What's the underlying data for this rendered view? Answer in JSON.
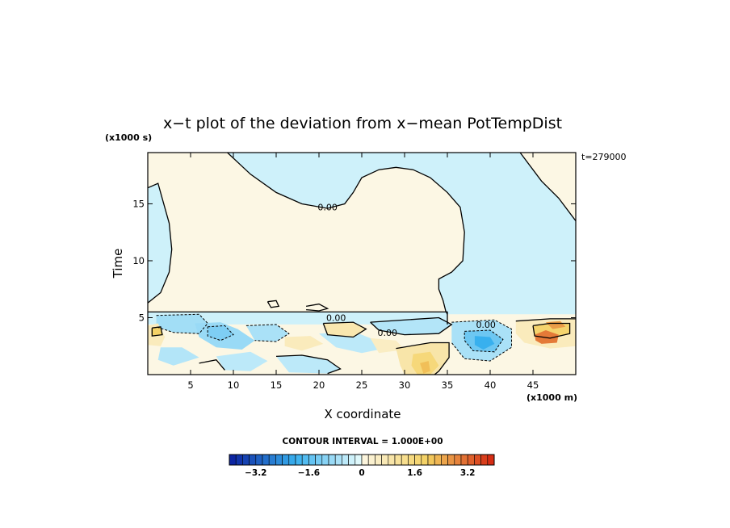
{
  "chart_data": {
    "type": "heatmap",
    "title": "x−t plot of the deviation from x−mean PotTempDist",
    "xlabel": "X coordinate",
    "ylabel": "Time",
    "x_unit": "(x1000 m)",
    "y_unit": "(x1000 s)",
    "time_stamp": "t=279000",
    "xlim": [
      0,
      50
    ],
    "ylim": [
      0,
      19.5
    ],
    "x_ticks": [
      5,
      10,
      15,
      20,
      25,
      30,
      35,
      40,
      45
    ],
    "y_ticks": [
      5,
      10,
      15
    ],
    "contour_interval_text": "CONTOUR INTERVAL = 1.000E+00",
    "contour_labels": [
      {
        "text": "0.00",
        "x": 21.0,
        "y": 14.7
      },
      {
        "text": "0.00",
        "x": 22.0,
        "y": 5.0
      },
      {
        "text": "0.00",
        "x": 39.5,
        "y": 4.4
      },
      {
        "text": "0.00",
        "x": 28.0,
        "y": 3.7
      }
    ],
    "colorbar": {
      "min": -4.0,
      "max": 4.0,
      "n_bins": 40,
      "tick_values": [
        -3.2,
        -1.6,
        0,
        1.6,
        3.2
      ],
      "tick_labels": [
        "−3.2",
        "−1.6",
        "0",
        "1.6",
        "3.2"
      ]
    },
    "colors": {
      "neg_deep": "#0a1e9e",
      "neg_mid": "#38b0ee",
      "neg_light": "#e8fcfc",
      "pos_light": "#fcf7e4",
      "pos_mid": "#f4d060",
      "pos_deep": "#d42410"
    },
    "regions": [
      {
        "value": -0.3,
        "polygon": [
          [
            0,
            6.3
          ],
          [
            1.5,
            7.2
          ],
          [
            2.5,
            9
          ],
          [
            2.8,
            11
          ],
          [
            2.5,
            13.3
          ],
          [
            1.6,
            15.7
          ],
          [
            1.2,
            16.8
          ],
          [
            0,
            16.4
          ],
          [
            0,
            19.5
          ],
          [
            9.3,
            19.5
          ],
          [
            12,
            17.6
          ],
          [
            15,
            16
          ],
          [
            18,
            15
          ],
          [
            21,
            14.6
          ],
          [
            23,
            15
          ],
          [
            24,
            16
          ],
          [
            25,
            17.3
          ],
          [
            27,
            18
          ],
          [
            29,
            18.2
          ],
          [
            31,
            18
          ],
          [
            33,
            17.3
          ],
          [
            35,
            16
          ],
          [
            36.5,
            14.7
          ],
          [
            37,
            12.5
          ],
          [
            36.8,
            10
          ],
          [
            35.5,
            9
          ],
          [
            34,
            8.4
          ],
          [
            34,
            7.5
          ],
          [
            34.5,
            6.5
          ],
          [
            34.8,
            5.6
          ],
          [
            35,
            5.3
          ],
          [
            50,
            5.3
          ],
          [
            50,
            13.5
          ],
          [
            48,
            15.5
          ],
          [
            46,
            17
          ],
          [
            43.5,
            19.5
          ],
          [
            50,
            19.5
          ],
          [
            50,
            19.5
          ],
          [
            0,
            19.5
          ],
          [
            0,
            6.3
          ]
        ]
      },
      {
        "value": -0.3,
        "polygon": [
          [
            0,
            5.5
          ],
          [
            35,
            5.5
          ],
          [
            35,
            4.4
          ],
          [
            0,
            4.4
          ]
        ]
      },
      {
        "value": -0.8,
        "polygon": [
          [
            1,
            5.2
          ],
          [
            6,
            5.3
          ],
          [
            7,
            4.5
          ],
          [
            6,
            3.6
          ],
          [
            3,
            3.7
          ],
          [
            1,
            4.2
          ]
        ]
      },
      {
        "value": -0.9,
        "polygon": [
          [
            5.5,
            4.5
          ],
          [
            8.5,
            4.6
          ],
          [
            10.5,
            4.0
          ],
          [
            12.5,
            3.0
          ],
          [
            11,
            2.2
          ],
          [
            8,
            2.4
          ],
          [
            6,
            3.3
          ]
        ]
      },
      {
        "value": -1.2,
        "polygon": [
          [
            7,
            4.2
          ],
          [
            9,
            4.3
          ],
          [
            10,
            3.5
          ],
          [
            8.5,
            3.0
          ],
          [
            7,
            3.4
          ]
        ]
      },
      {
        "value": -0.7,
        "polygon": [
          [
            11.5,
            4.3
          ],
          [
            15,
            4.4
          ],
          [
            16.5,
            3.6
          ],
          [
            15,
            2.9
          ],
          [
            12.5,
            3.0
          ]
        ]
      },
      {
        "value": -0.6,
        "polygon": [
          [
            1.5,
            2.4
          ],
          [
            4,
            2.4
          ],
          [
            6,
            1.5
          ],
          [
            3,
            0.8
          ],
          [
            1.2,
            1.3
          ]
        ]
      },
      {
        "value": -0.5,
        "polygon": [
          [
            8,
            1.6
          ],
          [
            12,
            2.0
          ],
          [
            14,
            1.2
          ],
          [
            12,
            0.3
          ],
          [
            9,
            0.4
          ]
        ]
      },
      {
        "value": -0.5,
        "polygon": [
          [
            15,
            1.6
          ],
          [
            18,
            1.7
          ],
          [
            21,
            1.3
          ],
          [
            22.5,
            0.5
          ],
          [
            21,
            0.1
          ],
          [
            16.5,
            0.2
          ]
        ]
      },
      {
        "value": -0.5,
        "polygon": [
          [
            20,
            3.6
          ],
          [
            24,
            3.8
          ],
          [
            26,
            3.2
          ],
          [
            27,
            2.2
          ],
          [
            25,
            1.9
          ],
          [
            22,
            2.4
          ]
        ]
      },
      {
        "value": -0.6,
        "polygon": [
          [
            26,
            4.6
          ],
          [
            34,
            5.0
          ],
          [
            35.5,
            4.4
          ],
          [
            34,
            3.6
          ],
          [
            30,
            3.5
          ],
          [
            27,
            3.9
          ]
        ]
      },
      {
        "value": -0.7,
        "polygon": [
          [
            35.5,
            4.6
          ],
          [
            40.5,
            4.8
          ],
          [
            42.5,
            4.0
          ],
          [
            42.5,
            2.4
          ],
          [
            40,
            1.2
          ],
          [
            37,
            1.4
          ],
          [
            35.5,
            2.8
          ]
        ]
      },
      {
        "value": -1.4,
        "polygon": [
          [
            37,
            3.8
          ],
          [
            40,
            3.9
          ],
          [
            41.5,
            3.1
          ],
          [
            40.5,
            2.0
          ],
          [
            38,
            2.1
          ],
          [
            37,
            3.0
          ]
        ]
      },
      {
        "value": -2.0,
        "polygon": [
          [
            38.2,
            3.4
          ],
          [
            40,
            3.3
          ],
          [
            40.5,
            2.7
          ],
          [
            39.2,
            2.2
          ],
          [
            38.2,
            2.6
          ]
        ]
      },
      {
        "value": 0.6,
        "polygon": [
          [
            0,
            4.3
          ],
          [
            1.2,
            4.5
          ],
          [
            2,
            3.3
          ],
          [
            1.5,
            2.5
          ],
          [
            0,
            2.6
          ]
        ]
      },
      {
        "value": 1.9,
        "polygon": [
          [
            0.5,
            4.1
          ],
          [
            1.5,
            4.2
          ],
          [
            1.7,
            3.5
          ],
          [
            0.5,
            3.4
          ]
        ]
      },
      {
        "value": 0.8,
        "polygon": [
          [
            20.5,
            4.5
          ],
          [
            24,
            4.6
          ],
          [
            25.5,
            4.0
          ],
          [
            24,
            3.3
          ],
          [
            21,
            3.5
          ]
        ]
      },
      {
        "value": 0.5,
        "polygon": [
          [
            26,
            3.2
          ],
          [
            29,
            3.0
          ],
          [
            30,
            2.2
          ],
          [
            27,
            1.9
          ]
        ]
      },
      {
        "value": 0.6,
        "polygon": [
          [
            16,
            3.3
          ],
          [
            19,
            3.4
          ],
          [
            20.5,
            2.7
          ],
          [
            18,
            2.1
          ],
          [
            16,
            2.5
          ]
        ]
      },
      {
        "value": 0.9,
        "polygon": [
          [
            29,
            2.3
          ],
          [
            33,
            2.8
          ],
          [
            35.2,
            2.8
          ],
          [
            35.2,
            1.5
          ],
          [
            34,
            0.3
          ],
          [
            33.5,
            0
          ],
          [
            30,
            0
          ],
          [
            29.5,
            0.8
          ]
        ]
      },
      {
        "value": 1.6,
        "polygon": [
          [
            31,
            1.8
          ],
          [
            33,
            2.0
          ],
          [
            34,
            0.8
          ],
          [
            33,
            0
          ],
          [
            31.5,
            0
          ],
          [
            30.8,
            0.8
          ]
        ]
      },
      {
        "value": 2.2,
        "polygon": [
          [
            31.8,
            1.0
          ],
          [
            32.8,
            1.2
          ],
          [
            33,
            0.3
          ],
          [
            32.2,
            0.1
          ]
        ]
      },
      {
        "value": 0.6,
        "polygon": [
          [
            43,
            4.7
          ],
          [
            47,
            4.9
          ],
          [
            50,
            4.9
          ],
          [
            50,
            2.5
          ],
          [
            47,
            2.3
          ],
          [
            44,
            2.8
          ],
          [
            43,
            3.6
          ]
        ]
      },
      {
        "value": 1.8,
        "polygon": [
          [
            45,
            4.3
          ],
          [
            47,
            4.5
          ],
          [
            49.3,
            4.5
          ],
          [
            49.3,
            3.6
          ],
          [
            47,
            3.2
          ],
          [
            45.2,
            3.4
          ]
        ]
      },
      {
        "value": 3.0,
        "polygon": [
          [
            45.2,
            3.5
          ],
          [
            46.5,
            3.9
          ],
          [
            48,
            3.5
          ],
          [
            47.8,
            2.8
          ],
          [
            46,
            2.7
          ],
          [
            45.3,
            3.0
          ]
        ]
      },
      {
        "value": 2.6,
        "polygon": [
          [
            46.5,
            4.6
          ],
          [
            48.2,
            4.7
          ],
          [
            48.8,
            4.2
          ],
          [
            47.3,
            4.0
          ]
        ]
      }
    ],
    "contour_lines": [
      [
        [
          9.3,
          19.5
        ],
        [
          12,
          17.6
        ],
        [
          15,
          16
        ],
        [
          18,
          15
        ],
        [
          21,
          14.6
        ],
        [
          23,
          15
        ],
        [
          24,
          16
        ],
        [
          25,
          17.3
        ],
        [
          27,
          18
        ],
        [
          29,
          18.2
        ],
        [
          31,
          18
        ],
        [
          33,
          17.3
        ],
        [
          35,
          16
        ],
        [
          36.5,
          14.7
        ],
        [
          37,
          12.5
        ],
        [
          36.8,
          10
        ],
        [
          35.5,
          9
        ],
        [
          34,
          8.4
        ],
        [
          34,
          7.5
        ],
        [
          34.5,
          6.5
        ],
        [
          34.8,
          5.6
        ],
        [
          35,
          5.3
        ]
      ],
      [
        [
          43.5,
          19.5
        ],
        [
          46,
          17
        ],
        [
          48,
          15.5
        ],
        [
          50,
          13.5
        ]
      ],
      [
        [
          0,
          6.3
        ],
        [
          1.5,
          7.2
        ],
        [
          2.5,
          9
        ],
        [
          2.8,
          11
        ],
        [
          2.5,
          13.3
        ],
        [
          1.6,
          15.7
        ],
        [
          1.2,
          16.8
        ],
        [
          0,
          16.4
        ]
      ],
      [
        [
          0,
          5.5
        ],
        [
          35,
          5.5
        ],
        [
          35,
          4.4
        ]
      ],
      [
        [
          20.5,
          4.5
        ],
        [
          24,
          4.6
        ],
        [
          25.5,
          4.0
        ],
        [
          24,
          3.3
        ],
        [
          21,
          3.5
        ],
        [
          20.5,
          4.5
        ]
      ],
      [
        [
          29,
          2.3
        ],
        [
          33,
          2.8
        ],
        [
          35.2,
          2.8
        ],
        [
          35.2,
          1.5
        ],
        [
          34,
          0.3
        ],
        [
          33.5,
          0
        ]
      ],
      [
        [
          26,
          4.6
        ],
        [
          34,
          5.0
        ],
        [
          35.5,
          4.4
        ],
        [
          34,
          3.6
        ],
        [
          30,
          3.5
        ],
        [
          27,
          3.9
        ],
        [
          26,
          4.6
        ]
      ],
      [
        [
          43,
          4.7
        ],
        [
          47,
          4.9
        ],
        [
          50,
          4.9
        ]
      ],
      [
        [
          45,
          4.3
        ],
        [
          47,
          4.5
        ],
        [
          49.3,
          4.5
        ],
        [
          49.3,
          3.6
        ],
        [
          47,
          3.2
        ],
        [
          45.2,
          3.4
        ],
        [
          45,
          4.3
        ]
      ],
      [
        [
          0.5,
          4.1
        ],
        [
          1.5,
          4.2
        ],
        [
          1.7,
          3.5
        ],
        [
          0.5,
          3.4
        ],
        [
          0.5,
          4.1
        ]
      ],
      [
        [
          15,
          1.6
        ],
        [
          18,
          1.7
        ],
        [
          21,
          1.3
        ],
        [
          22.5,
          0.5
        ],
        [
          21,
          0.1
        ]
      ],
      [
        [
          6,
          1.0
        ],
        [
          8,
          1.3
        ],
        [
          9,
          0.4
        ]
      ],
      [
        [
          14,
          6.4
        ],
        [
          15,
          6.5
        ],
        [
          15.3,
          6.0
        ],
        [
          14.4,
          5.9
        ],
        [
          14,
          6.4
        ]
      ],
      [
        [
          18.5,
          6.0
        ],
        [
          20,
          6.2
        ],
        [
          21,
          5.8
        ],
        [
          20,
          5.6
        ],
        [
          18.5,
          5.7
        ]
      ]
    ],
    "dashed_lines": [
      [
        [
          7,
          4.2
        ],
        [
          9,
          4.3
        ],
        [
          10,
          3.5
        ],
        [
          8.5,
          3.0
        ],
        [
          7,
          3.4
        ],
        [
          7,
          4.2
        ]
      ],
      [
        [
          37,
          3.8
        ],
        [
          40,
          3.9
        ],
        [
          41.5,
          3.1
        ],
        [
          40.5,
          2.0
        ],
        [
          38,
          2.1
        ],
        [
          37,
          3.0
        ],
        [
          37,
          3.8
        ]
      ],
      [
        [
          35.5,
          4.6
        ],
        [
          40.5,
          4.8
        ],
        [
          42.5,
          4.0
        ],
        [
          42.5,
          2.4
        ],
        [
          40,
          1.2
        ],
        [
          37,
          1.4
        ],
        [
          35.5,
          2.8
        ]
      ],
      [
        [
          1,
          5.2
        ],
        [
          6,
          5.3
        ],
        [
          7,
          4.5
        ],
        [
          6,
          3.6
        ],
        [
          3,
          3.7
        ],
        [
          1,
          4.2
        ]
      ],
      [
        [
          11.5,
          4.3
        ],
        [
          15,
          4.4
        ],
        [
          16.5,
          3.6
        ],
        [
          15,
          2.9
        ],
        [
          12.5,
          3.0
        ]
      ]
    ]
  }
}
